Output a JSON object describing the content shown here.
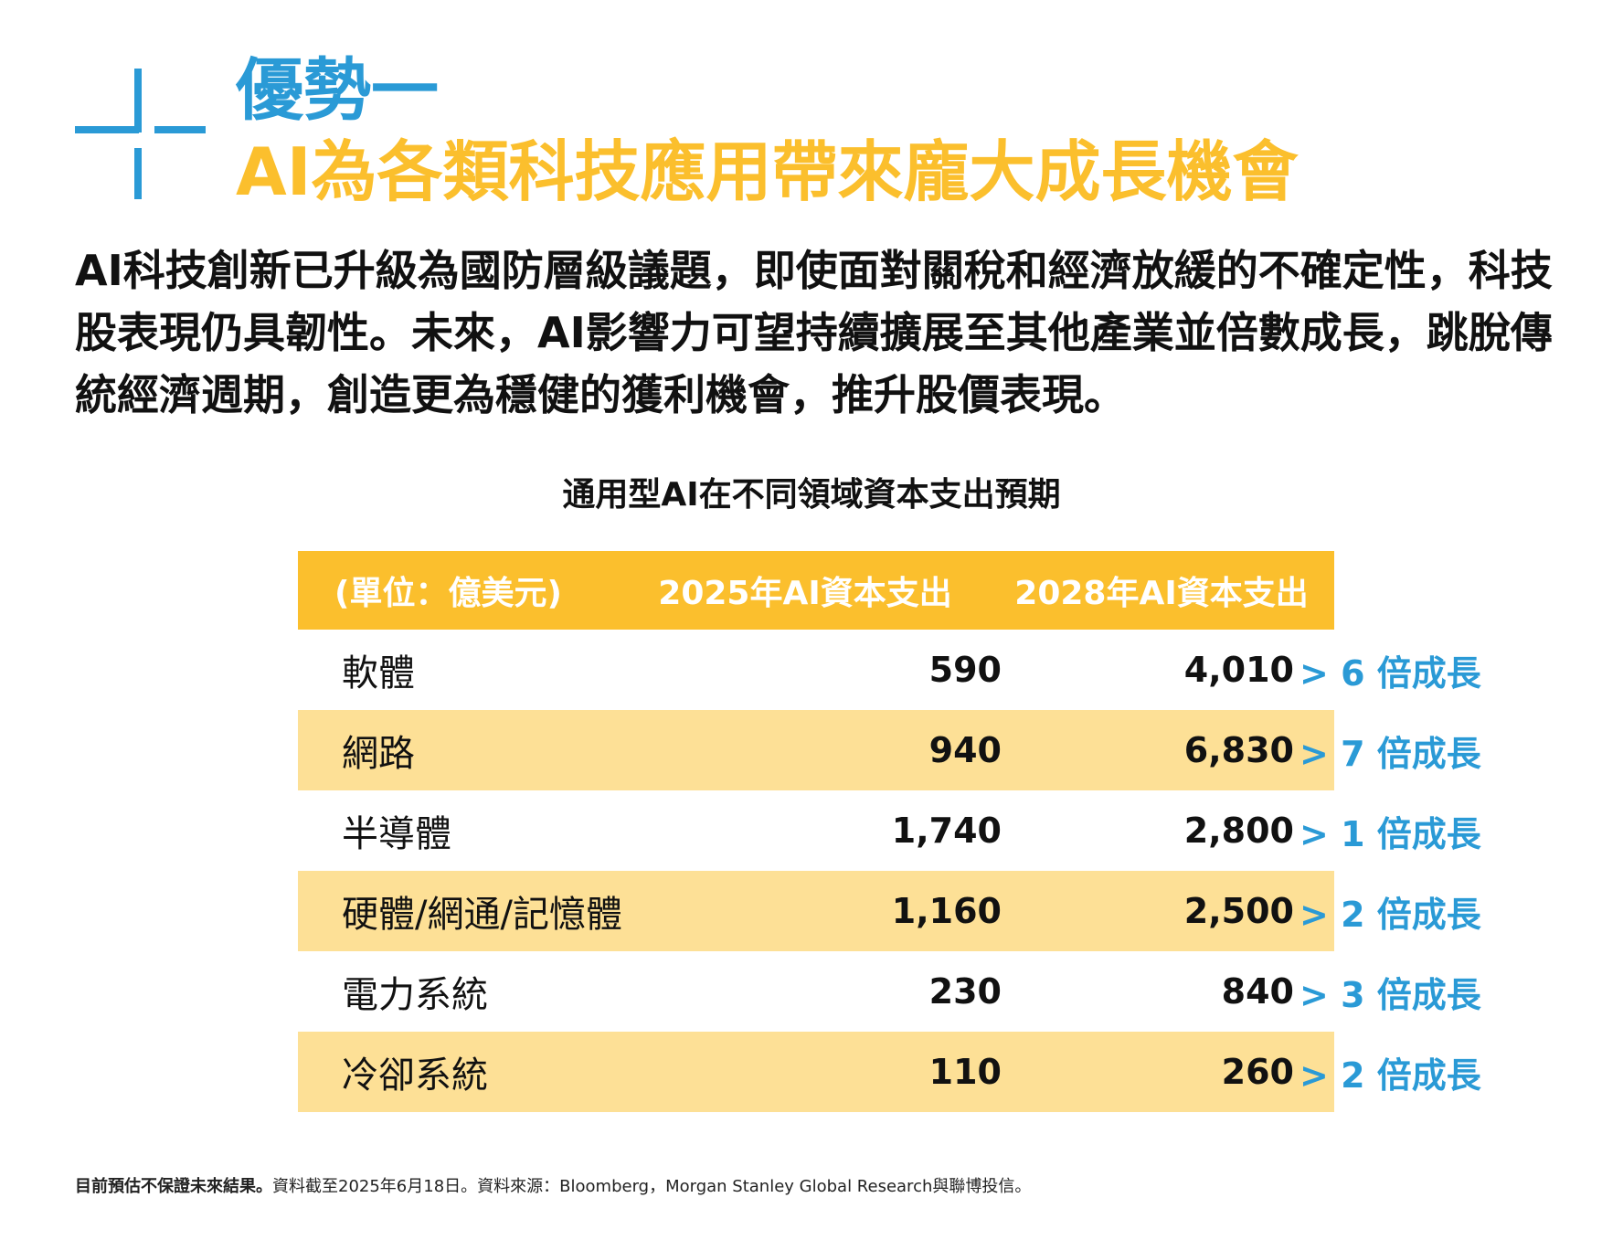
{
  "header": {
    "title_line1": "優勢一",
    "title_line2": "AI為各類科技應用帶來龐大成長機會"
  },
  "intro": "AI科技創新已升級為國防層級議題，即使面對關稅和經濟放緩的不確定性，科技股表現仍具韌性。未來，AI影響力可望持續擴展至其他產業並倍數成長，跳脫傳統經濟週期，創造更為穩健的獲利機會，推升股價表現。",
  "table": {
    "title": "通用型AI在不同領域資本支出預期",
    "columns": [
      "(單位：億美元)",
      "2025年AI資本支出",
      "2028年AI資本支出"
    ],
    "rows": [
      {
        "name": "軟體",
        "v2025": "590",
        "v2028": "4,010",
        "growth": "> 6 倍成長"
      },
      {
        "name": "網路",
        "v2025": "940",
        "v2028": "6,830",
        "growth": "> 7 倍成長"
      },
      {
        "name": "半導體",
        "v2025": "1,740",
        "v2028": "2,800",
        "growth": "> 1 倍成長"
      },
      {
        "name": "硬體/網通/記憶體",
        "v2025": "1,160",
        "v2028": "2,500",
        "growth": "> 2 倍成長"
      },
      {
        "name": "電力系統",
        "v2025": "230",
        "v2028": "840",
        "growth": "> 3 倍成長"
      },
      {
        "name": "冷卻系統",
        "v2025": "110",
        "v2028": "260",
        "growth": "> 2 倍成長"
      }
    ]
  },
  "footnote": {
    "bold": "目前預估不保證未來結果。",
    "text": "資料截至2025年6月18日。資料來源：Bloomberg，Morgan Stanley Global Research與聯博投信。"
  },
  "colors": {
    "accent_blue": "#2a9ad6",
    "accent_yellow": "#fbbf2d",
    "row_highlight": "#fde096"
  }
}
